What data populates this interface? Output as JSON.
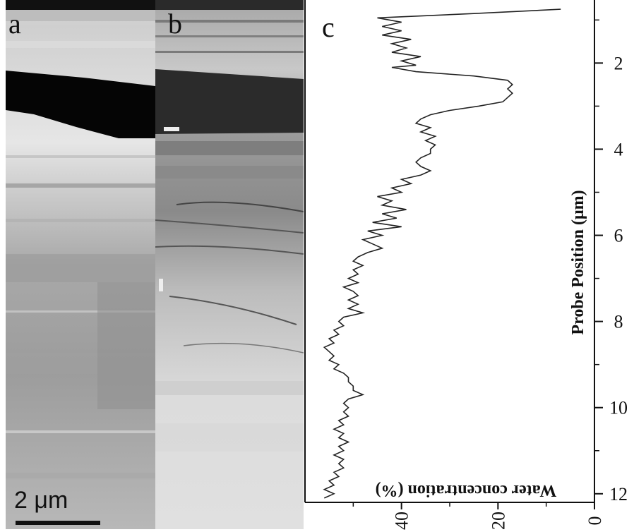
{
  "panels": {
    "a": {
      "letter": "a"
    },
    "b": {
      "letter": "b"
    },
    "c": {
      "letter": "c"
    }
  },
  "scale_bar": {
    "label": "2 μm"
  },
  "chart_data": {
    "type": "line",
    "title": "",
    "xlabel": "Water concentration (%)",
    "ylabel": "Probe Position (μm)",
    "xlim": [
      0,
      60
    ],
    "xaxis_reversed": true,
    "ylim": [
      0.7,
      12.2
    ],
    "yaxis_reversed": true,
    "x_ticks": [
      40,
      20,
      0
    ],
    "y_ticks": [
      2,
      4,
      6,
      8,
      10,
      12
    ],
    "tick_labels_rotated_90": true,
    "series": [
      {
        "points": [
          [
            7,
            0.75
          ],
          [
            25,
            0.85
          ],
          [
            45,
            0.95
          ],
          [
            40,
            1.05
          ],
          [
            44,
            1.15
          ],
          [
            40,
            1.25
          ],
          [
            44,
            1.35
          ],
          [
            38,
            1.45
          ],
          [
            42,
            1.55
          ],
          [
            39,
            1.65
          ],
          [
            42,
            1.75
          ],
          [
            36,
            1.85
          ],
          [
            40,
            1.95
          ],
          [
            37,
            2.05
          ],
          [
            42,
            2.1
          ],
          [
            37,
            2.2
          ],
          [
            25,
            2.3
          ],
          [
            18,
            2.4
          ],
          [
            17,
            2.5
          ],
          [
            18,
            2.6
          ],
          [
            17,
            2.7
          ],
          [
            18,
            2.8
          ],
          [
            19,
            2.9
          ],
          [
            24,
            3.0
          ],
          [
            30,
            3.1
          ],
          [
            34,
            3.2
          ],
          [
            36,
            3.3
          ],
          [
            37,
            3.4
          ],
          [
            34,
            3.5
          ],
          [
            36,
            3.6
          ],
          [
            33,
            3.7
          ],
          [
            35,
            3.8
          ],
          [
            33,
            3.9
          ],
          [
            34,
            4.0
          ],
          [
            34,
            4.1
          ],
          [
            36,
            4.2
          ],
          [
            37,
            4.3
          ],
          [
            36,
            4.4
          ],
          [
            34,
            4.5
          ],
          [
            36,
            4.6
          ],
          [
            40,
            4.7
          ],
          [
            38,
            4.8
          ],
          [
            42,
            4.9
          ],
          [
            40,
            5.0
          ],
          [
            45,
            5.1
          ],
          [
            42,
            5.2
          ],
          [
            44,
            5.3
          ],
          [
            39,
            5.4
          ],
          [
            44,
            5.5
          ],
          [
            41,
            5.6
          ],
          [
            46,
            5.7
          ],
          [
            40,
            5.8
          ],
          [
            47,
            5.9
          ],
          [
            44,
            6.0
          ],
          [
            48,
            6.1
          ],
          [
            46,
            6.2
          ],
          [
            44,
            6.3
          ],
          [
            47,
            6.4
          ],
          [
            49,
            6.5
          ],
          [
            50,
            6.6
          ],
          [
            48,
            6.7
          ],
          [
            50,
            6.8
          ],
          [
            49,
            6.9
          ],
          [
            51,
            7.0
          ],
          [
            49,
            7.1
          ],
          [
            52,
            7.2
          ],
          [
            50,
            7.3
          ],
          [
            49,
            7.4
          ],
          [
            51,
            7.5
          ],
          [
            49,
            7.6
          ],
          [
            51,
            7.7
          ],
          [
            48,
            7.8
          ],
          [
            52,
            7.9
          ],
          [
            53,
            8.0
          ],
          [
            52,
            8.1
          ],
          [
            54,
            8.2
          ],
          [
            53,
            8.3
          ],
          [
            55,
            8.4
          ],
          [
            54,
            8.5
          ],
          [
            56,
            8.6
          ],
          [
            55,
            8.7
          ],
          [
            54,
            8.8
          ],
          [
            55,
            8.9
          ],
          [
            53,
            9.0
          ],
          [
            54,
            9.1
          ],
          [
            52,
            9.2
          ],
          [
            51,
            9.3
          ],
          [
            51,
            9.4
          ],
          [
            50,
            9.5
          ],
          [
            50,
            9.6
          ],
          [
            48,
            9.7
          ],
          [
            51,
            9.8
          ],
          [
            52,
            9.9
          ],
          [
            51,
            10.0
          ],
          [
            52,
            10.1
          ],
          [
            51,
            10.2
          ],
          [
            53,
            10.3
          ],
          [
            52,
            10.4
          ],
          [
            54,
            10.5
          ],
          [
            52,
            10.6
          ],
          [
            53,
            10.7
          ],
          [
            51,
            10.8
          ],
          [
            53,
            10.9
          ],
          [
            52,
            11.0
          ],
          [
            54,
            11.1
          ],
          [
            52,
            11.2
          ],
          [
            53,
            11.3
          ],
          [
            52,
            11.4
          ],
          [
            54,
            11.5
          ],
          [
            53,
            11.6
          ],
          [
            55,
            11.7
          ],
          [
            54,
            11.8
          ],
          [
            56,
            11.9
          ],
          [
            54,
            12.0
          ],
          [
            56,
            12.1
          ]
        ]
      }
    ]
  }
}
